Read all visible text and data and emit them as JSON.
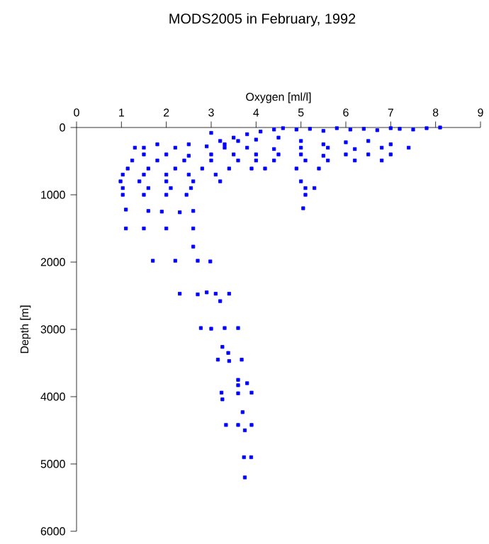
{
  "chart_data": {
    "type": "scatter",
    "title": "MODS2005 in February, 1992",
    "xlabel": "Oxygen [ml/l]",
    "ylabel": "Depth [m]",
    "xlim": [
      0,
      9
    ],
    "ylim": [
      6000,
      0
    ],
    "xticks": [
      0,
      1,
      2,
      3,
      4,
      5,
      6,
      7,
      8,
      9
    ],
    "yticks": [
      0,
      1000,
      2000,
      3000,
      4000,
      5000,
      6000
    ],
    "marker": "square",
    "grid": false,
    "series": [
      {
        "color": "#0000ff",
        "x": [
          8.1,
          7.8,
          7.5,
          7.2,
          7.0,
          6.7,
          6.4,
          6.1,
          5.8,
          5.5,
          5.2,
          4.9,
          4.6,
          4.4,
          4.1,
          3.8,
          3.5,
          3.2,
          3.0,
          3.3,
          3.6,
          4.0,
          4.5,
          5.0,
          5.5,
          6.0,
          6.5,
          7.0,
          7.4,
          6.8,
          6.2,
          5.6,
          5.0,
          4.4,
          3.8,
          3.3,
          2.9,
          2.5,
          2.2,
          1.8,
          1.5,
          1.3,
          1.5,
          2.0,
          2.5,
          3.0,
          3.5,
          4.0,
          4.5,
          5.0,
          5.5,
          6.0,
          6.5,
          7.0,
          1.24,
          1.8,
          2.4,
          3.0,
          3.6,
          4.0,
          4.4,
          5.1,
          5.6,
          6.2,
          6.8,
          1.14,
          1.6,
          2.2,
          2.8,
          3.4,
          3.9,
          4.2,
          4.9,
          5.4,
          1.03,
          1.5,
          2.0,
          2.5,
          3.1,
          0.98,
          1.4,
          2.0,
          2.6,
          3.2,
          5.0,
          1.03,
          1.6,
          2.1,
          2.55,
          5.1,
          5.3,
          1.03,
          1.5,
          2.0,
          2.45,
          5.1,
          1.1,
          1.6,
          1.9,
          2.3,
          2.6,
          5.05,
          1.1,
          1.5,
          2.0,
          2.6,
          2.6,
          1.7,
          2.2,
          2.7,
          2.98,
          2.3,
          2.7,
          2.9,
          3.1,
          3.4,
          3.2,
          2.77,
          3.0,
          3.3,
          3.6,
          3.25,
          3.38,
          3.15,
          3.4,
          3.68,
          3.6,
          3.6,
          3.8,
          3.23,
          3.6,
          3.9,
          3.25,
          3.7,
          3.33,
          3.6,
          3.9,
          3.75,
          3.73,
          3.89,
          3.75
        ],
        "values": [
          0,
          10,
          30,
          20,
          10,
          40,
          20,
          30,
          10,
          50,
          20,
          30,
          10,
          30,
          60,
          100,
          150,
          200,
          80,
          250,
          200,
          180,
          150,
          200,
          250,
          220,
          200,
          250,
          300,
          300,
          320,
          300,
          300,
          320,
          300,
          300,
          280,
          250,
          300,
          250,
          300,
          300,
          400,
          400,
          420,
          400,
          400,
          400,
          400,
          400,
          420,
          400,
          400,
          400,
          490,
          490,
          490,
          490,
          490,
          490,
          490,
          490,
          490,
          490,
          490,
          610,
          610,
          610,
          610,
          610,
          610,
          610,
          610,
          610,
          700,
          700,
          700,
          700,
          700,
          800,
          800,
          800,
          800,
          800,
          800,
          900,
          900,
          900,
          900,
          900,
          900,
          1000,
          1000,
          1000,
          1000,
          1000,
          1220,
          1240,
          1250,
          1260,
          1240,
          1200,
          1500,
          1500,
          1500,
          1500,
          1770,
          1980,
          1980,
          1980,
          1990,
          2470,
          2480,
          2450,
          2470,
          2470,
          2580,
          2980,
          2990,
          2980,
          2980,
          3260,
          3350,
          3450,
          3470,
          3450,
          3750,
          3830,
          3800,
          3940,
          3950,
          3940,
          4040,
          4230,
          4420,
          4420,
          4420,
          4500,
          4900,
          4900,
          5200
        ]
      }
    ]
  }
}
